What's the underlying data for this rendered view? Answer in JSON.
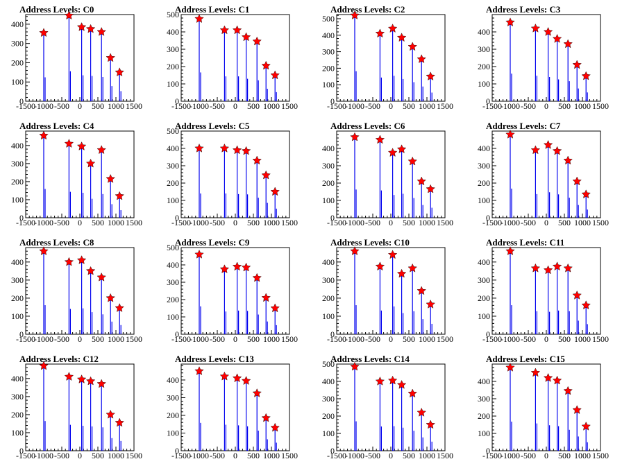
{
  "chart_data": [
    {
      "type": "bar",
      "title": "Address Levels: C0",
      "ylim": [
        0,
        450
      ],
      "xlim": [
        -1500,
        1500
      ],
      "xticks": [
        "-1500",
        "-1000",
        "-500",
        "0",
        "500",
        "1000",
        "1500"
      ],
      "yticks": [
        0,
        100,
        200,
        300,
        400
      ],
      "spikes": [
        {
          "x": -1000,
          "y": 355
        },
        {
          "x": -300,
          "y": 445
        },
        {
          "x": 50,
          "y": 385
        },
        {
          "x": 300,
          "y": 375
        },
        {
          "x": 600,
          "y": 360
        },
        {
          "x": 850,
          "y": 225
        },
        {
          "x": 1100,
          "y": 150
        }
      ]
    },
    {
      "type": "bar",
      "title": "Address Levels: C1",
      "ylim": [
        0,
        500
      ],
      "xlim": [
        -1500,
        1500
      ],
      "xticks": [
        "-1500",
        "-1000",
        "-500",
        "0",
        "500",
        "1000",
        "1500"
      ],
      "yticks": [
        0,
        100,
        200,
        300,
        400,
        500
      ],
      "spikes": [
        {
          "x": -1000,
          "y": 475
        },
        {
          "x": -300,
          "y": 410
        },
        {
          "x": 50,
          "y": 410
        },
        {
          "x": 300,
          "y": 370
        },
        {
          "x": 600,
          "y": 345
        },
        {
          "x": 850,
          "y": 205
        },
        {
          "x": 1100,
          "y": 150
        }
      ]
    },
    {
      "type": "bar",
      "title": "Address Levels: C2",
      "ylim": [
        0,
        525
      ],
      "xlim": [
        -1500,
        1500
      ],
      "xticks": [
        "-1500",
        "-1000",
        "-500",
        "0",
        "500",
        "1000",
        "1500"
      ],
      "yticks": [
        0,
        100,
        200,
        300,
        400,
        500
      ],
      "spikes": [
        {
          "x": -1000,
          "y": 520
        },
        {
          "x": -300,
          "y": 410
        },
        {
          "x": 50,
          "y": 440
        },
        {
          "x": 300,
          "y": 385
        },
        {
          "x": 600,
          "y": 330
        },
        {
          "x": 850,
          "y": 255
        },
        {
          "x": 1100,
          "y": 150
        }
      ]
    },
    {
      "type": "bar",
      "title": "Address Levels: C3",
      "ylim": [
        0,
        500
      ],
      "xlim": [
        -1500,
        1500
      ],
      "xticks": [
        "-1500",
        "-1000",
        "-500",
        "0",
        "500",
        "1000",
        "1500"
      ],
      "yticks": [
        0,
        100,
        200,
        300,
        400
      ],
      "spikes": [
        {
          "x": -1000,
          "y": 455
        },
        {
          "x": -300,
          "y": 420
        },
        {
          "x": 50,
          "y": 400
        },
        {
          "x": 300,
          "y": 360
        },
        {
          "x": 600,
          "y": 330
        },
        {
          "x": 850,
          "y": 210
        },
        {
          "x": 1100,
          "y": 145
        }
      ]
    },
    {
      "type": "bar",
      "title": "Address Levels: C4",
      "ylim": [
        0,
        480
      ],
      "xlim": [
        -1500,
        1500
      ],
      "xticks": [
        "-1500",
        "-1000",
        "-500",
        "0",
        "500",
        "1000",
        "1500"
      ],
      "yticks": [
        0,
        100,
        200,
        300,
        400
      ],
      "spikes": [
        {
          "x": -1000,
          "y": 455
        },
        {
          "x": -300,
          "y": 410
        },
        {
          "x": 50,
          "y": 395
        },
        {
          "x": 300,
          "y": 300
        },
        {
          "x": 600,
          "y": 375
        },
        {
          "x": 850,
          "y": 215
        },
        {
          "x": 1100,
          "y": 120
        }
      ]
    },
    {
      "type": "bar",
      "title": "Address Levels: C5",
      "ylim": [
        0,
        500
      ],
      "xlim": [
        -1500,
        1500
      ],
      "xticks": [
        "-1500",
        "-1000",
        "-500",
        "0",
        "500",
        "1000",
        "1500"
      ],
      "yticks": [
        0,
        100,
        200,
        300,
        400,
        500
      ],
      "spikes": [
        {
          "x": -1000,
          "y": 400
        },
        {
          "x": -300,
          "y": 400
        },
        {
          "x": 50,
          "y": 390
        },
        {
          "x": 300,
          "y": 385
        },
        {
          "x": 600,
          "y": 330
        },
        {
          "x": 850,
          "y": 245
        },
        {
          "x": 1100,
          "y": 150
        }
      ]
    },
    {
      "type": "bar",
      "title": "Address Levels: C6",
      "ylim": [
        0,
        500
      ],
      "xlim": [
        -1500,
        1500
      ],
      "xticks": [
        "-1500",
        "-1000",
        "-500",
        "0",
        "500",
        "1000",
        "1500"
      ],
      "yticks": [
        0,
        100,
        200,
        300,
        400
      ],
      "spikes": [
        {
          "x": -1000,
          "y": 465
        },
        {
          "x": -300,
          "y": 450
        },
        {
          "x": 50,
          "y": 375
        },
        {
          "x": 300,
          "y": 395
        },
        {
          "x": 600,
          "y": 325
        },
        {
          "x": 850,
          "y": 210
        },
        {
          "x": 1100,
          "y": 165
        }
      ]
    },
    {
      "type": "bar",
      "title": "Address Levels: C7",
      "ylim": [
        0,
        500
      ],
      "xlim": [
        -1500,
        1500
      ],
      "xticks": [
        "-1500",
        "-1000",
        "-500",
        "0",
        "500",
        "1000",
        "1500"
      ],
      "yticks": [
        0,
        100,
        200,
        300,
        400
      ],
      "spikes": [
        {
          "x": -1000,
          "y": 480
        },
        {
          "x": -300,
          "y": 390
        },
        {
          "x": 50,
          "y": 420
        },
        {
          "x": 300,
          "y": 385
        },
        {
          "x": 600,
          "y": 330
        },
        {
          "x": 850,
          "y": 210
        },
        {
          "x": 1100,
          "y": 135
        }
      ]
    },
    {
      "type": "bar",
      "title": "Address Levels: C8",
      "ylim": [
        0,
        480
      ],
      "xlim": [
        -1500,
        1500
      ],
      "xticks": [
        "-1500",
        "-1000",
        "-500",
        "0",
        "500",
        "1000",
        "1500"
      ],
      "yticks": [
        0,
        100,
        200,
        300,
        400
      ],
      "spikes": [
        {
          "x": -1000,
          "y": 460
        },
        {
          "x": -300,
          "y": 400
        },
        {
          "x": 50,
          "y": 410
        },
        {
          "x": 300,
          "y": 350
        },
        {
          "x": 600,
          "y": 315
        },
        {
          "x": 850,
          "y": 200
        },
        {
          "x": 1100,
          "y": 145
        }
      ]
    },
    {
      "type": "bar",
      "title": "Address Levels: C9",
      "ylim": [
        0,
        500
      ],
      "xlim": [
        -1500,
        1500
      ],
      "xticks": [
        "-1500",
        "-1000",
        "-500",
        "0",
        "500",
        "1000",
        "1500"
      ],
      "yticks": [
        0,
        100,
        200,
        300,
        400,
        500
      ],
      "spikes": [
        {
          "x": -1000,
          "y": 460
        },
        {
          "x": -300,
          "y": 375
        },
        {
          "x": 50,
          "y": 390
        },
        {
          "x": 300,
          "y": 385
        },
        {
          "x": 600,
          "y": 325
        },
        {
          "x": 850,
          "y": 210
        },
        {
          "x": 1100,
          "y": 150
        }
      ]
    },
    {
      "type": "bar",
      "title": "Address Levels: C10",
      "ylim": [
        0,
        480
      ],
      "xlim": [
        -1500,
        1500
      ],
      "xticks": [
        "-1500",
        "-1000",
        "-500",
        "0",
        "500",
        "1000",
        "1500"
      ],
      "yticks": [
        0,
        100,
        200,
        300,
        400
      ],
      "spikes": [
        {
          "x": -1000,
          "y": 460
        },
        {
          "x": -300,
          "y": 375
        },
        {
          "x": 50,
          "y": 440
        },
        {
          "x": 300,
          "y": 335
        },
        {
          "x": 600,
          "y": 365
        },
        {
          "x": 850,
          "y": 240
        },
        {
          "x": 1100,
          "y": 165
        }
      ]
    },
    {
      "type": "bar",
      "title": "Address Levels: C11",
      "ylim": [
        0,
        480
      ],
      "xlim": [
        -1500,
        1500
      ],
      "xticks": [
        "-1500",
        "-1000",
        "-500",
        "0",
        "500",
        "1000",
        "1500"
      ],
      "yticks": [
        0,
        100,
        200,
        300,
        400
      ],
      "spikes": [
        {
          "x": -1000,
          "y": 460
        },
        {
          "x": -300,
          "y": 365
        },
        {
          "x": 50,
          "y": 355
        },
        {
          "x": 300,
          "y": 375
        },
        {
          "x": 600,
          "y": 365
        },
        {
          "x": 850,
          "y": 215
        },
        {
          "x": 1100,
          "y": 160
        }
      ]
    },
    {
      "type": "bar",
      "title": "Address Levels: C12",
      "ylim": [
        0,
        480
      ],
      "xlim": [
        -1500,
        1500
      ],
      "xticks": [
        "-1500",
        "-1000",
        "-500",
        "0",
        "500",
        "1000",
        "1500"
      ],
      "yticks": [
        0,
        100,
        200,
        300,
        400
      ],
      "spikes": [
        {
          "x": -1000,
          "y": 470
        },
        {
          "x": -300,
          "y": 410
        },
        {
          "x": 50,
          "y": 395
        },
        {
          "x": 300,
          "y": 385
        },
        {
          "x": 600,
          "y": 370
        },
        {
          "x": 850,
          "y": 200
        },
        {
          "x": 1100,
          "y": 155
        }
      ]
    },
    {
      "type": "bar",
      "title": "Address Levels: C13",
      "ylim": [
        0,
        490
      ],
      "xlim": [
        -1500,
        1500
      ],
      "xticks": [
        "-1500",
        "-1000",
        "-500",
        "0",
        "500",
        "1000",
        "1500"
      ],
      "yticks": [
        0,
        100,
        200,
        300,
        400
      ],
      "spikes": [
        {
          "x": -1000,
          "y": 450
        },
        {
          "x": -300,
          "y": 420
        },
        {
          "x": 50,
          "y": 410
        },
        {
          "x": 300,
          "y": 395
        },
        {
          "x": 600,
          "y": 325
        },
        {
          "x": 850,
          "y": 185
        },
        {
          "x": 1100,
          "y": 130
        }
      ]
    },
    {
      "type": "bar",
      "title": "Address Levels: C14",
      "ylim": [
        0,
        500
      ],
      "xlim": [
        -1500,
        1500
      ],
      "xticks": [
        "-1500",
        "-1000",
        "-500",
        "0",
        "500",
        "1000",
        "1500"
      ],
      "yticks": [
        0,
        100,
        200,
        300,
        400,
        500
      ],
      "spikes": [
        {
          "x": -1000,
          "y": 485
        },
        {
          "x": -300,
          "y": 400
        },
        {
          "x": 50,
          "y": 405
        },
        {
          "x": 300,
          "y": 380
        },
        {
          "x": 600,
          "y": 330
        },
        {
          "x": 850,
          "y": 220
        },
        {
          "x": 1100,
          "y": 150
        }
      ]
    },
    {
      "type": "bar",
      "title": "Address Levels: C15",
      "ylim": [
        0,
        500
      ],
      "xlim": [
        -1500,
        1500
      ],
      "xticks": [
        "-1500",
        "-1000",
        "-500",
        "0",
        "500",
        "1000",
        "1500"
      ],
      "yticks": [
        0,
        100,
        200,
        300,
        400
      ],
      "spikes": [
        {
          "x": -1000,
          "y": 480
        },
        {
          "x": -300,
          "y": 450
        },
        {
          "x": 50,
          "y": 420
        },
        {
          "x": 300,
          "y": 405
        },
        {
          "x": 600,
          "y": 345
        },
        {
          "x": 850,
          "y": 235
        },
        {
          "x": 1100,
          "y": 140
        }
      ]
    }
  ]
}
